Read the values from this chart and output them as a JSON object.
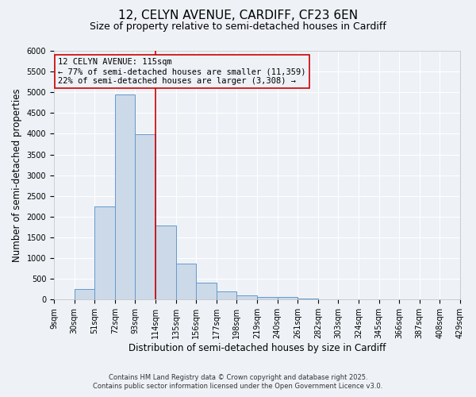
{
  "title": "12, CELYN AVENUE, CARDIFF, CF23 6EN",
  "subtitle": "Size of property relative to semi-detached houses in Cardiff",
  "xlabel": "Distribution of semi-detached houses by size in Cardiff",
  "ylabel": "Number of semi-detached properties",
  "bin_labels": [
    "9sqm",
    "30sqm",
    "51sqm",
    "72sqm",
    "93sqm",
    "114sqm",
    "135sqm",
    "156sqm",
    "177sqm",
    "198sqm",
    "219sqm",
    "240sqm",
    "261sqm",
    "282sqm",
    "303sqm",
    "324sqm",
    "345sqm",
    "366sqm",
    "387sqm",
    "408sqm",
    "429sqm"
  ],
  "bin_edges": [
    9,
    30,
    51,
    72,
    93,
    114,
    135,
    156,
    177,
    198,
    219,
    240,
    261,
    282,
    303,
    324,
    345,
    366,
    387,
    408,
    429
  ],
  "bar_heights": [
    0,
    250,
    2250,
    4950,
    3980,
    1790,
    860,
    410,
    200,
    110,
    70,
    60,
    30,
    0,
    0,
    0,
    0,
    0,
    0,
    0
  ],
  "bar_facecolor": "#ccd9e8",
  "bar_edgecolor": "#6699cc",
  "vline_x": 114,
  "vline_color": "#cc0000",
  "annotation_title": "12 CELYN AVENUE: 115sqm",
  "annotation_line1": "← 77% of semi-detached houses are smaller (11,359)",
  "annotation_line2": "22% of semi-detached houses are larger (3,308) →",
  "annotation_box_edgecolor": "#cc0000",
  "ylim": [
    0,
    6000
  ],
  "yticks": [
    0,
    500,
    1000,
    1500,
    2000,
    2500,
    3000,
    3500,
    4000,
    4500,
    5000,
    5500,
    6000
  ],
  "background_color": "#eef2f7",
  "grid_color": "#ffffff",
  "footer1": "Contains HM Land Registry data © Crown copyright and database right 2025.",
  "footer2": "Contains public sector information licensed under the Open Government Licence v3.0.",
  "title_fontsize": 11,
  "subtitle_fontsize": 9,
  "axis_label_fontsize": 8.5,
  "tick_fontsize": 7,
  "annotation_fontsize": 7.5,
  "footer_fontsize": 6
}
